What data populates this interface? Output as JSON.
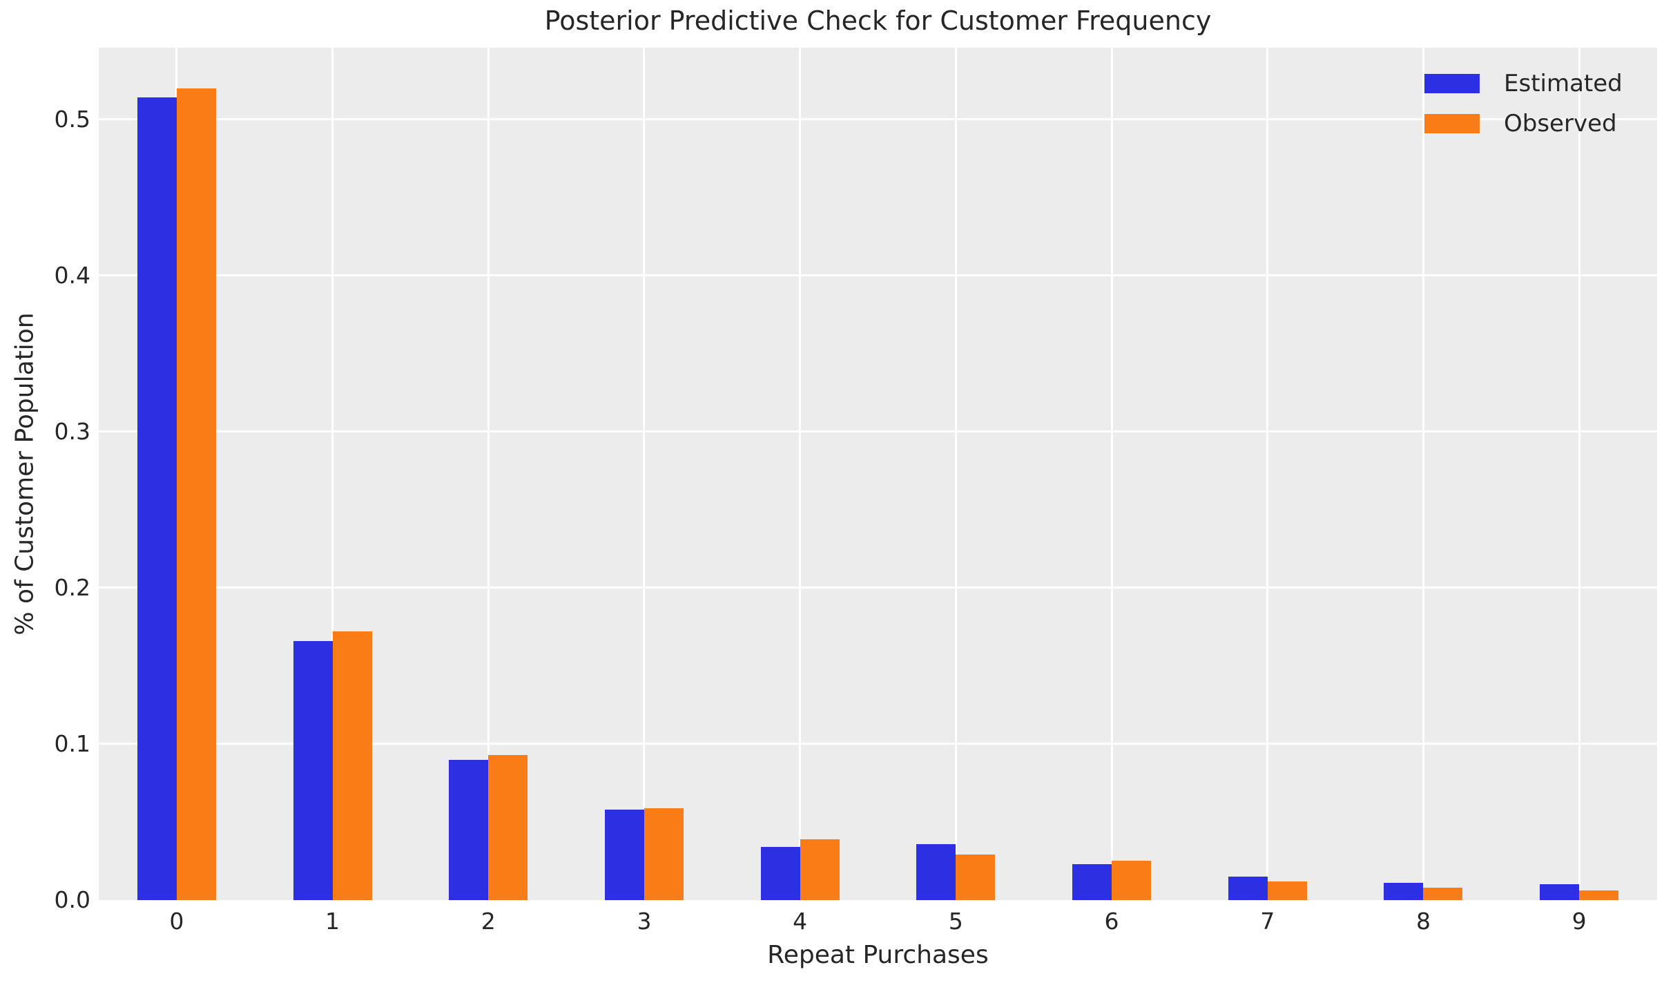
{
  "chart": {
    "title": "Posterior Predictive Check for Customer Frequency",
    "xlabel": "Repeat Purchases",
    "ylabel": "% of Customer Population",
    "colors": {
      "estimated": "#2c2fe2",
      "observed": "#fa7c16",
      "plot_background": "#ececec",
      "gridline": "#ffffff",
      "text": "#262626",
      "figure_background": "#ffffff"
    },
    "legend": {
      "items": [
        {
          "label": "Estimated",
          "color": "#2c2fe2"
        },
        {
          "label": "Observed",
          "color": "#fa7c16"
        }
      ],
      "position": "upper right"
    }
  },
  "chart_data": {
    "type": "bar",
    "title": "Posterior Predictive Check for Customer Frequency",
    "xlabel": "Repeat Purchases",
    "ylabel": "% of Customer Population",
    "categories": [
      "0",
      "1",
      "2",
      "3",
      "4",
      "5",
      "6",
      "7",
      "8",
      "9"
    ],
    "series": [
      {
        "name": "Estimated",
        "color": "#2c2fe2",
        "values": [
          0.514,
          0.166,
          0.09,
          0.058,
          0.034,
          0.036,
          0.023,
          0.015,
          0.011,
          0.01
        ]
      },
      {
        "name": "Observed",
        "color": "#fa7c16",
        "values": [
          0.52,
          0.172,
          0.093,
          0.059,
          0.039,
          0.029,
          0.025,
          0.012,
          0.008,
          0.006
        ]
      }
    ],
    "yticks": [
      0.0,
      0.1,
      0.2,
      0.3,
      0.4,
      0.5
    ],
    "ytick_labels": [
      "0.0",
      "0.1",
      "0.2",
      "0.3",
      "0.4",
      "0.5"
    ],
    "ylim": [
      0,
      0.546
    ],
    "grid": true,
    "legend_position": "upper right"
  }
}
